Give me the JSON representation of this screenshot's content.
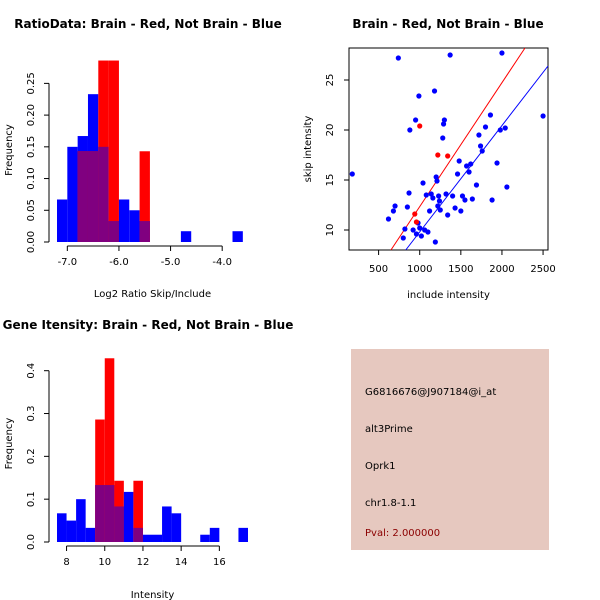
{
  "colors": {
    "red": "#ff0000",
    "blue": "#0000ff",
    "overlap": "#800080",
    "panel_bg": "#e6c8bf",
    "pval": "#8b0000"
  },
  "chart_data": [
    {
      "type": "bar",
      "subtype": "overlaid-histogram",
      "title": "RatioData: Brain - Red, Not Brain - Blue",
      "xlabel": "Log2 Ratio Skip/Include",
      "ylabel": "Frequency",
      "xlim": [
        -7.2,
        -3.5
      ],
      "ylim": [
        0,
        0.29
      ],
      "xticks": [
        "-7.0",
        "-6.0",
        "-5.0",
        "-4.0"
      ],
      "xtick_values": [
        -7.0,
        -6.0,
        -5.0,
        -4.0
      ],
      "yticks": [
        "0.00",
        "0.05",
        "0.10",
        "0.15",
        "0.20",
        "0.25"
      ],
      "ytick_values": [
        0,
        0.05,
        0.1,
        0.15,
        0.2,
        0.25
      ],
      "bin_width": 0.2,
      "series": [
        {
          "name": "Not Brain",
          "color": "blue",
          "bin_starts": [
            -7.2,
            -7.0,
            -6.8,
            -6.6,
            -6.4,
            -6.2,
            -6.0,
            -5.8,
            -5.6,
            -5.4,
            -5.2,
            -5.0,
            -4.8,
            -4.6,
            -4.4,
            -4.2,
            -4.0,
            -3.8
          ],
          "values": [
            0.067,
            0.15,
            0.167,
            0.233,
            0.15,
            0.033,
            0.067,
            0.05,
            0.033,
            0.0,
            0.0,
            0.0,
            0.017,
            0.0,
            0.0,
            0.0,
            0.0,
            0.017
          ]
        },
        {
          "name": "Brain",
          "color": "red",
          "bin_starts": [
            -7.2,
            -7.0,
            -6.8,
            -6.6,
            -6.4,
            -6.2,
            -6.0,
            -5.8,
            -5.6,
            -5.4,
            -5.2,
            -5.0,
            -4.8,
            -4.6,
            -4.4,
            -4.2,
            -4.0,
            -3.8
          ],
          "values": [
            0.0,
            0.0,
            0.143,
            0.143,
            0.286,
            0.286,
            0.0,
            0.0,
            0.143,
            0.0,
            0.0,
            0.0,
            0.0,
            0.0,
            0.0,
            0.0,
            0.0,
            0.0
          ]
        }
      ]
    },
    {
      "type": "scatter",
      "title": "Brain - Red, Not Brain - Blue",
      "xlabel": "include intensity",
      "ylabel": "skip intensity",
      "xlim": [
        140,
        2560
      ],
      "ylim": [
        8,
        28.2
      ],
      "xticks": [
        "500",
        "1000",
        "1500",
        "2000",
        "2500"
      ],
      "xtick_values": [
        500,
        1000,
        1500,
        2000,
        2500
      ],
      "yticks": [
        "10",
        "15",
        "20",
        "25"
      ],
      "ytick_values": [
        10,
        15,
        20,
        25
      ],
      "series": [
        {
          "name": "Not Brain",
          "color": "blue",
          "points": [
            [
              180,
              15.6
            ],
            [
              620,
              11.1
            ],
            [
              680,
              11.9
            ],
            [
              700,
              12.4
            ],
            [
              740,
              27.2
            ],
            [
              800,
              9.2
            ],
            [
              820,
              10.1
            ],
            [
              850,
              12.3
            ],
            [
              870,
              13.7
            ],
            [
              880,
              20
            ],
            [
              920,
              10
            ],
            [
              950,
              21
            ],
            [
              960,
              9.6
            ],
            [
              980,
              10.7
            ],
            [
              990,
              23.4
            ],
            [
              1000,
              10.2
            ],
            [
              1020,
              9.4
            ],
            [
              1040,
              14.7
            ],
            [
              1060,
              10
            ],
            [
              1080,
              13.5
            ],
            [
              1100,
              9.8
            ],
            [
              1120,
              11.9
            ],
            [
              1140,
              13.6
            ],
            [
              1160,
              13.2
            ],
            [
              1180,
              23.9
            ],
            [
              1190,
              8.8
            ],
            [
              1200,
              15.3
            ],
            [
              1210,
              14.9
            ],
            [
              1220,
              12.4
            ],
            [
              1230,
              13.4
            ],
            [
              1240,
              12.9
            ],
            [
              1250,
              12
            ],
            [
              1280,
              19.2
            ],
            [
              1290,
              20.6
            ],
            [
              1300,
              21
            ],
            [
              1320,
              13.6
            ],
            [
              1340,
              11.5
            ],
            [
              1370,
              27.5
            ],
            [
              1400,
              13.4
            ],
            [
              1430,
              12.2
            ],
            [
              1460,
              15.6
            ],
            [
              1480,
              16.9
            ],
            [
              1500,
              11.9
            ],
            [
              1520,
              13.4
            ],
            [
              1550,
              13
            ],
            [
              1570,
              16.4
            ],
            [
              1600,
              15.8
            ],
            [
              1620,
              16.6
            ],
            [
              1640,
              13.1
            ],
            [
              1690,
              14.5
            ],
            [
              1720,
              19.5
            ],
            [
              1740,
              18.4
            ],
            [
              1760,
              17.9
            ],
            [
              1800,
              20.3
            ],
            [
              1860,
              21.5
            ],
            [
              1880,
              13
            ],
            [
              1940,
              16.7
            ],
            [
              1980,
              20
            ],
            [
              2000,
              27.7
            ],
            [
              2040,
              20.2
            ],
            [
              2060,
              14.3
            ],
            [
              2500,
              21.4
            ]
          ]
        },
        {
          "name": "Brain",
          "color": "red",
          "points": [
            [
              940,
              11.6
            ],
            [
              960,
              10.8
            ],
            [
              1000,
              20.4
            ],
            [
              1220,
              17.5
            ],
            [
              1340,
              17.4
            ]
          ]
        }
      ],
      "fit_lines": [
        {
          "color": "red",
          "from": [
            650,
            8
          ],
          "to": [
            2280,
            28.2
          ]
        },
        {
          "color": "blue",
          "from": [
            830,
            8
          ],
          "to": [
            2560,
            26.4
          ]
        }
      ]
    },
    {
      "type": "bar",
      "subtype": "overlaid-histogram",
      "title": "Gene Itensity: Brain - Red, Not Brain - Blue",
      "xlabel": "Intensity",
      "ylabel": "Frequency",
      "xlim": [
        7.5,
        17.5
      ],
      "ylim": [
        0,
        0.46
      ],
      "xticks": [
        "8",
        "10",
        "12",
        "14",
        "16"
      ],
      "xtick_values": [
        8,
        10,
        12,
        14,
        16
      ],
      "yticks": [
        "0.0",
        "0.1",
        "0.2",
        "0.3",
        "0.4"
      ],
      "ytick_values": [
        0,
        0.1,
        0.2,
        0.3,
        0.4
      ],
      "bin_width": 0.5,
      "series": [
        {
          "name": "Not Brain",
          "color": "blue",
          "bin_starts": [
            7.5,
            8.0,
            8.5,
            9.0,
            9.5,
            10.0,
            10.5,
            11.0,
            11.5,
            12.0,
            12.5,
            13.0,
            13.5,
            14.0,
            14.5,
            15.0,
            15.5,
            16.0,
            16.5,
            17.0
          ],
          "values": [
            0.067,
            0.05,
            0.1,
            0.033,
            0.133,
            0.133,
            0.083,
            0.117,
            0.033,
            0.017,
            0.017,
            0.083,
            0.067,
            0.0,
            0.0,
            0.017,
            0.033,
            0.0,
            0.0,
            0.033
          ]
        },
        {
          "name": "Brain",
          "color": "red",
          "bin_starts": [
            7.5,
            8.0,
            8.5,
            9.0,
            9.5,
            10.0,
            10.5,
            11.0,
            11.5,
            12.0,
            12.5,
            13.0,
            13.5,
            14.0,
            14.5,
            15.0,
            15.5,
            16.0,
            16.5,
            17.0
          ],
          "values": [
            0.0,
            0.0,
            0.0,
            0.0,
            0.286,
            0.429,
            0.143,
            0.0,
            0.143,
            0.0,
            0.0,
            0.0,
            0.0,
            0.0,
            0.0,
            0.0,
            0.0,
            0.0,
            0.0,
            0.0
          ]
        }
      ]
    }
  ],
  "info_panel": {
    "probe_id": "G6816676@J907184@i_at",
    "event_type": "alt3Prime",
    "gene": "Oprk1",
    "location": "chr1.8-1.1",
    "pval": "Pval: 2.000000"
  }
}
